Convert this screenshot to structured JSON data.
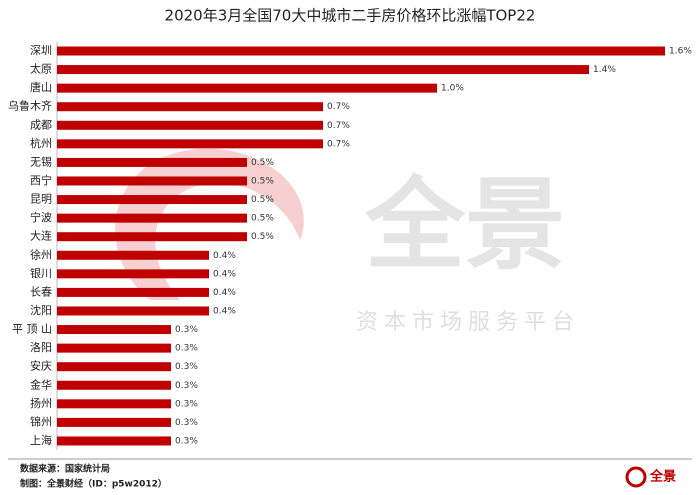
{
  "chart_data": {
    "type": "barh",
    "title": "2020年3月全国70大中城市二手房价格环比涨幅TOP22",
    "categories": [
      "深圳",
      "太原",
      "唐山",
      "乌鲁木齐",
      "成都",
      "杭州",
      "无锡",
      "西宁",
      "昆明",
      "宁波",
      "大连",
      "徐州",
      "银川",
      "长春",
      "沈阳",
      "平 顶 山",
      "洛阳",
      "安庆",
      "金华",
      "扬州",
      "锦州",
      "上海"
    ],
    "values": [
      1.6,
      1.4,
      1.0,
      0.7,
      0.7,
      0.7,
      0.5,
      0.5,
      0.5,
      0.5,
      0.5,
      0.4,
      0.4,
      0.4,
      0.4,
      0.3,
      0.3,
      0.3,
      0.3,
      0.3,
      0.3,
      0.3
    ],
    "value_labels": [
      "1.6%",
      "1.4%",
      "1.0%",
      "0.7%",
      "0.7%",
      "0.7%",
      "0.5%",
      "0.5%",
      "0.5%",
      "0.5%",
      "0.5%",
      "0.4%",
      "0.4%",
      "0.4%",
      "0.4%",
      "0.3%",
      "0.3%",
      "0.3%",
      "0.3%",
      "0.3%",
      "0.3%",
      "0.3%"
    ],
    "color": "#c00000",
    "xlim": [
      0,
      1.65
    ]
  },
  "footer": {
    "source": "数据来源：国家统计局",
    "maker": "制图：全景财经（ID：p5w2012）",
    "logo": "全景"
  },
  "watermark": {
    "brand": "全景",
    "tagline": "资本市场服务平台"
  }
}
